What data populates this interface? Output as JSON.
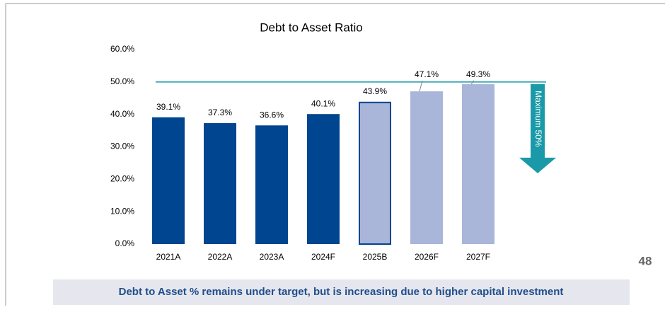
{
  "chart_data": {
    "type": "bar",
    "title": "Debt to Asset Ratio",
    "categories": [
      "2021A",
      "2022A",
      "2023A",
      "2024F",
      "2025B",
      "2026F",
      "2027F"
    ],
    "values": [
      39.1,
      37.3,
      36.6,
      40.1,
      43.9,
      47.1,
      49.3
    ],
    "value_labels": [
      "39.1%",
      "37.3%",
      "36.6%",
      "40.1%",
      "43.9%",
      "47.1%",
      "49.3%"
    ],
    "colors": [
      "#004590",
      "#004590",
      "#004590",
      "#004590",
      "#a9b5d9",
      "#a9b5d9",
      "#a9b5d9"
    ],
    "outlined": [
      false,
      false,
      false,
      false,
      true,
      false,
      false
    ],
    "ylim": [
      0,
      60
    ],
    "yticks": [
      {
        "value": 0,
        "label": "0.0%"
      },
      {
        "value": 10,
        "label": "10.0%"
      },
      {
        "value": 20,
        "label": "20.0%"
      },
      {
        "value": 30,
        "label": "30.0%"
      },
      {
        "value": 40,
        "label": "40.0%"
      },
      {
        "value": 50,
        "label": "50.0%"
      },
      {
        "value": 60,
        "label": "60.0%"
      }
    ],
    "grid": false,
    "reference_line": {
      "value": 50,
      "label": "Maximum 50%",
      "color": "#1a9aa8"
    }
  },
  "page_number": "48",
  "footer": "Debt to Asset % remains under target, but is increasing due to higher capital investment"
}
